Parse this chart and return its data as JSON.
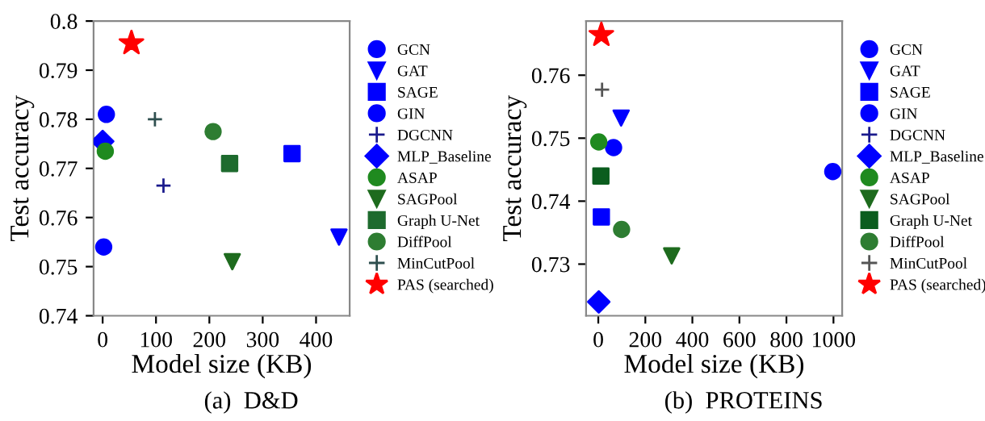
{
  "chart_data": [
    {
      "type": "scatter",
      "xlabel": "Model size (KB)",
      "ylabel": "Test accuracy",
      "xlim": [
        -17,
        463
      ],
      "xticks": [
        0,
        100,
        200,
        300,
        400
      ],
      "ylim": [
        0.74,
        0.8
      ],
      "yticks": [
        0.74,
        0.75,
        0.76,
        0.77,
        0.78,
        0.79,
        0.8
      ],
      "grid": false,
      "legend": "right",
      "annotations": [
        "(a)  D&D"
      ],
      "series": [
        {
          "name": "GCN",
          "color": "#0000ff",
          "marker": "circle",
          "x": [
            7
          ],
          "values": [
            0.781
          ]
        },
        {
          "name": "GAT",
          "color": "#0000ff",
          "marker": "triangle_down",
          "x": [
            443
          ],
          "values": [
            0.756
          ]
        },
        {
          "name": "SAGE",
          "color": "#0000ff",
          "marker": "square",
          "x": [
            355
          ],
          "values": [
            0.773
          ]
        },
        {
          "name": "GIN",
          "color": "#0000ff",
          "marker": "circle",
          "x": [
            2
          ],
          "values": [
            0.754
          ]
        },
        {
          "name": "DGCNN",
          "color": "#1a1a8c",
          "marker": "cross",
          "x": [
            114
          ],
          "values": [
            0.7665
          ]
        },
        {
          "name": "MLP_Baseline",
          "color": "#0000ff",
          "marker": "diamond",
          "x": [
            0
          ],
          "values": [
            0.7755
          ]
        },
        {
          "name": "ASAP",
          "color": "#1f8a1f",
          "marker": "circle",
          "x": [
            5
          ],
          "values": [
            0.7735
          ]
        },
        {
          "name": "SAGPool",
          "color": "#1e6b1e",
          "marker": "triangle_down",
          "x": [
            243
          ],
          "values": [
            0.751
          ]
        },
        {
          "name": "Graph U-Net",
          "color": "#1e6b2e",
          "marker": "square",
          "x": [
            238
          ],
          "values": [
            0.771
          ]
        },
        {
          "name": "DiffPool",
          "color": "#2e7d32",
          "marker": "circle",
          "x": [
            207
          ],
          "values": [
            0.7775
          ]
        },
        {
          "name": "MinCutPool",
          "color": "#2f4f4f",
          "marker": "cross",
          "x": [
            98
          ],
          "values": [
            0.78
          ]
        },
        {
          "name": "PAS (searched)",
          "color": "#ff0000",
          "marker": "star",
          "x": [
            54
          ],
          "values": [
            0.7955
          ]
        }
      ]
    },
    {
      "type": "scatter",
      "xlabel": "Model size (KB)",
      "ylabel": "Test accuracy",
      "xlim": [
        -52,
        1037
      ],
      "xticks": [
        0,
        200,
        400,
        600,
        800,
        1000
      ],
      "ylim": [
        0.7218,
        0.7686
      ],
      "yticks": [
        0.73,
        0.74,
        0.75,
        0.76
      ],
      "grid": false,
      "legend": "right",
      "annotations": [
        "(b)  PROTEINS"
      ],
      "series": [
        {
          "name": "GCN",
          "color": "#0000ff",
          "marker": "circle",
          "x": [
            65
          ],
          "values": [
            0.7485
          ]
        },
        {
          "name": "GAT",
          "color": "#0000ff",
          "marker": "triangle_down",
          "x": [
            97
          ],
          "values": [
            0.7532
          ]
        },
        {
          "name": "SAGE",
          "color": "#0000ff",
          "marker": "square",
          "x": [
            13
          ],
          "values": [
            0.7375
          ]
        },
        {
          "name": "GIN",
          "color": "#0000ff",
          "marker": "circle",
          "x": [
            997
          ],
          "values": [
            0.7447
          ]
        },
        {
          "name": "DGCNN",
          "color": "#1a1a8c",
          "marker": "cross"
        },
        {
          "name": "MLP_Baseline",
          "color": "#0000ff",
          "marker": "diamond",
          "x": [
            2
          ],
          "values": [
            0.724
          ]
        },
        {
          "name": "ASAP",
          "color": "#1f8a1f",
          "marker": "circle",
          "x": [
            2
          ],
          "values": [
            0.7494
          ]
        },
        {
          "name": "SAGPool",
          "color": "#1e6b1e",
          "marker": "triangle_down",
          "x": [
            312
          ],
          "values": [
            0.7313
          ]
        },
        {
          "name": "Graph U-Net",
          "color": "#0b5d1e",
          "marker": "square",
          "x": [
            11
          ],
          "values": [
            0.744
          ]
        },
        {
          "name": "DiffPool",
          "color": "#2e7d32",
          "marker": "circle",
          "x": [
            99
          ],
          "values": [
            0.7355
          ]
        },
        {
          "name": "MinCutPool",
          "color": "#555555",
          "marker": "cross",
          "x": [
            16
          ],
          "values": [
            0.7577
          ]
        },
        {
          "name": "PAS (searched)",
          "color": "#ff0000",
          "marker": "star",
          "x": [
            13
          ],
          "values": [
            0.7664
          ]
        }
      ]
    }
  ]
}
